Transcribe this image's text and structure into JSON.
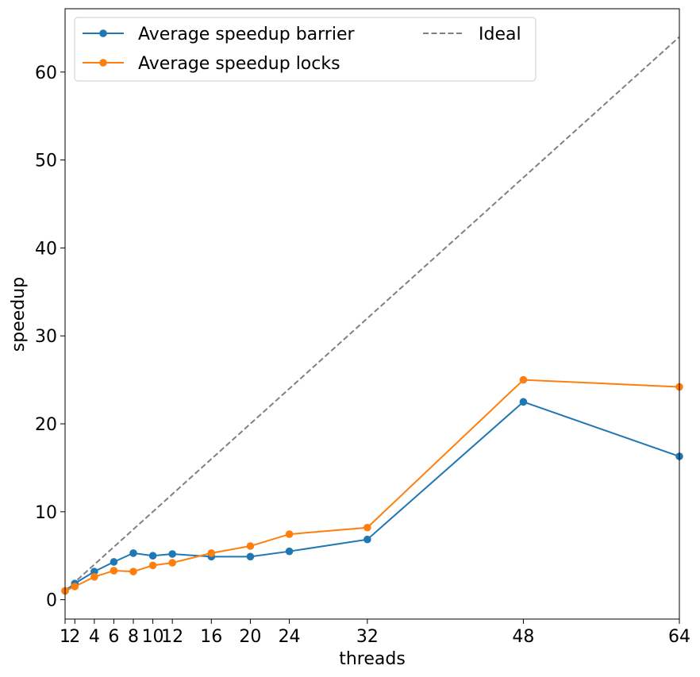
{
  "chart_data": {
    "type": "line",
    "xlabel": "threads",
    "ylabel": "speedup",
    "xlim": [
      1,
      64
    ],
    "ylim": [
      -2.2,
      67.2
    ],
    "xticks": [
      1,
      2,
      4,
      6,
      8,
      10,
      12,
      16,
      20,
      24,
      32,
      48,
      64
    ],
    "xtick_labels": [
      "1",
      "2",
      "4",
      "6",
      "8",
      "10",
      "12",
      "16",
      "20",
      "24",
      "32",
      "48",
      "64"
    ],
    "yticks": [
      0,
      10,
      20,
      30,
      40,
      50,
      60
    ],
    "ytick_labels": [
      "0",
      "10",
      "20",
      "30",
      "40",
      "50",
      "60"
    ],
    "grid": false,
    "legend_position": "top-left",
    "series": [
      {
        "name": "Average speedup barrier",
        "color": "#1f77b4",
        "style": "solid-markers",
        "x": [
          1,
          2,
          4,
          6,
          8,
          10,
          12,
          16,
          20,
          24,
          32,
          48,
          64
        ],
        "values": [
          1.0,
          1.85,
          3.2,
          4.3,
          5.3,
          5.0,
          5.2,
          4.9,
          4.9,
          5.5,
          6.85,
          22.5,
          16.3
        ]
      },
      {
        "name": "Average speedup locks",
        "color": "#ff7f0e",
        "style": "solid-markers",
        "x": [
          1,
          2,
          4,
          6,
          8,
          10,
          12,
          16,
          20,
          24,
          32,
          48,
          64
        ],
        "values": [
          1.0,
          1.5,
          2.6,
          3.3,
          3.2,
          3.9,
          4.2,
          5.3,
          6.1,
          7.45,
          8.2,
          25.0,
          24.2
        ]
      },
      {
        "name": "Ideal",
        "color": "#808080",
        "style": "dashed",
        "x": [
          1,
          64
        ],
        "values": [
          1,
          64
        ]
      }
    ]
  }
}
